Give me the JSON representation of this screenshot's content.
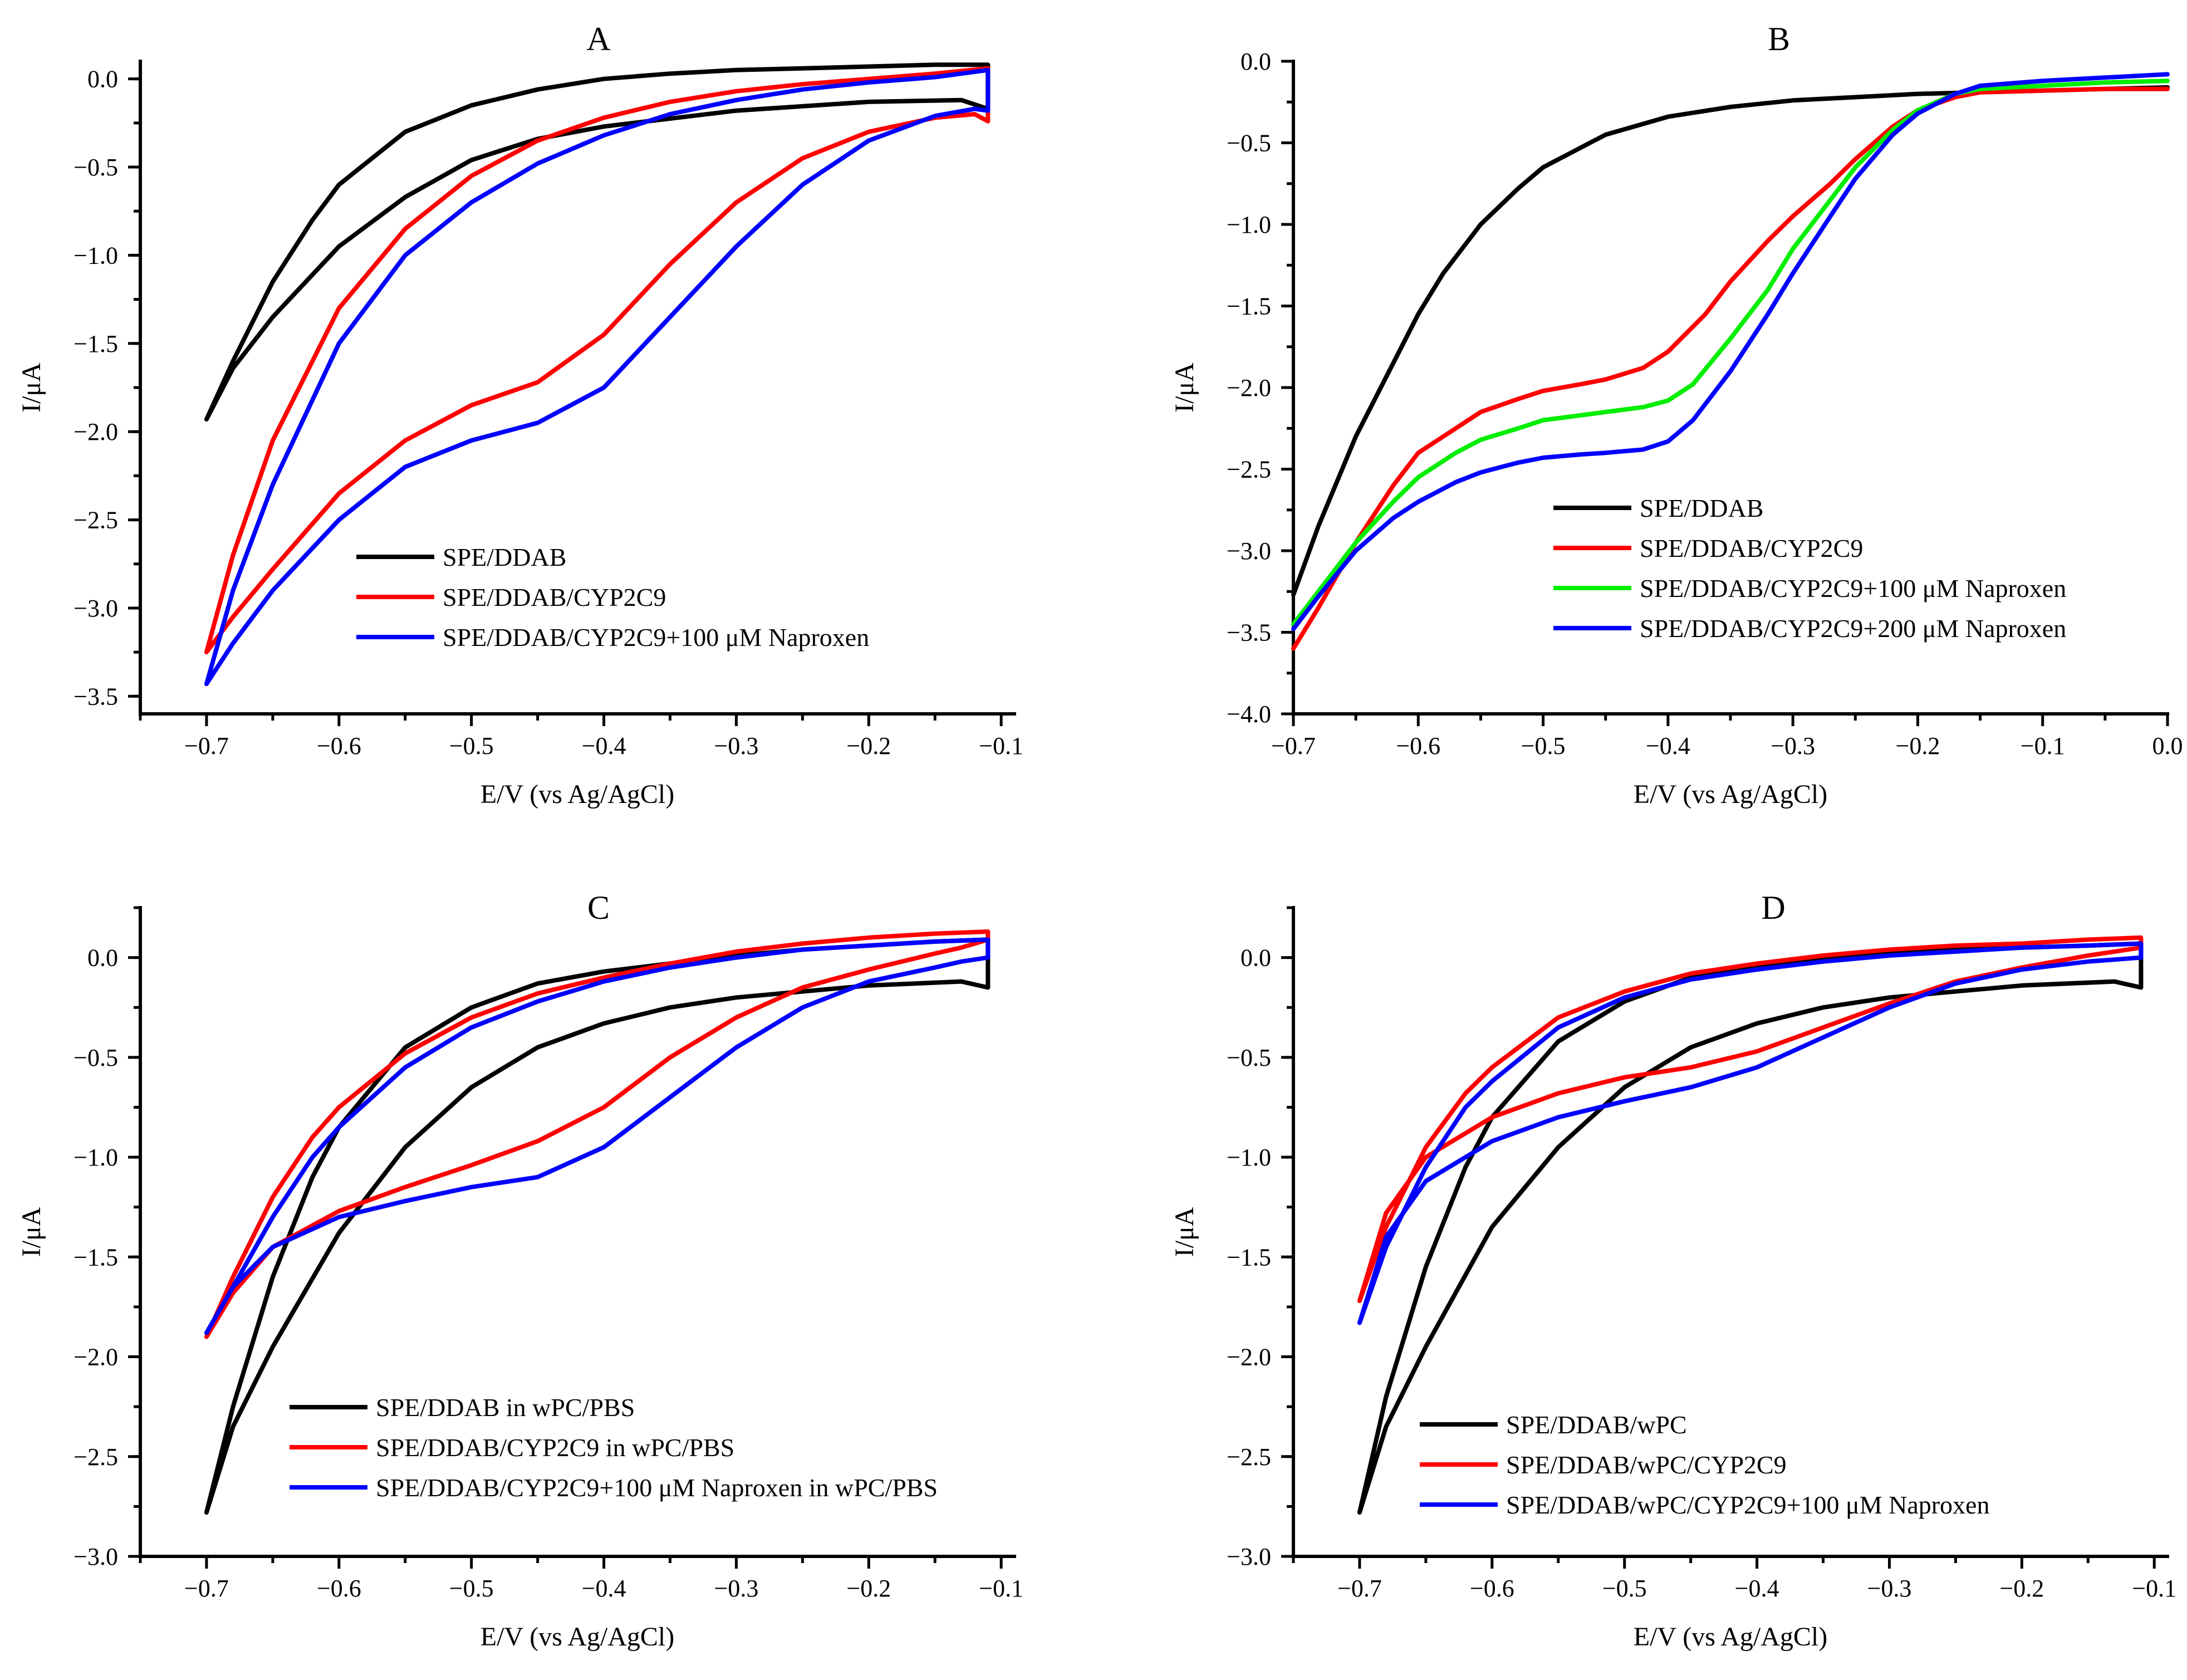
{
  "chart_data": [
    {
      "type": "line",
      "title": "A",
      "xlabel": "E/V (vs Ag/AgCl)",
      "ylabel": "I/μA",
      "xlim": [
        -0.75,
        -0.09
      ],
      "ylim": [
        -3.6,
        0.1
      ],
      "xticks": [
        -0.7,
        -0.6,
        -0.5,
        -0.4,
        -0.3,
        -0.2,
        -0.1
      ],
      "xtick_labels": [
        "−0.7",
        "−0.6",
        "−0.5",
        "−0.4",
        "−0.3",
        "−0.2",
        "−0.1"
      ],
      "yticks": [
        0.0,
        -0.5,
        -1.0,
        -1.5,
        -2.0,
        -2.5,
        -3.0,
        -3.5
      ],
      "ytick_labels": [
        "0.0",
        "−0.5",
        "−1.0",
        "−1.5",
        "−2.0",
        "−2.5",
        "−3.0",
        "−3.5"
      ],
      "legend_position": "bottom-center",
      "series": [
        {
          "name": "SPE/DDAB",
          "color": "#000000",
          "x": [
            -0.7,
            -0.68,
            -0.65,
            -0.62,
            -0.6,
            -0.55,
            -0.5,
            -0.45,
            -0.4,
            -0.35,
            -0.3,
            -0.25,
            -0.2,
            -0.15,
            -0.11,
            -0.11,
            -0.13,
            -0.2,
            -0.3,
            -0.4,
            -0.45,
            -0.5,
            -0.55,
            -0.6,
            -0.65,
            -0.68,
            -0.7
          ],
          "y": [
            -1.93,
            -1.6,
            -1.15,
            -0.8,
            -0.6,
            -0.3,
            -0.15,
            -0.06,
            0.0,
            0.03,
            0.05,
            0.06,
            0.07,
            0.08,
            0.08,
            -0.17,
            -0.12,
            -0.13,
            -0.18,
            -0.27,
            -0.34,
            -0.46,
            -0.67,
            -0.95,
            -1.35,
            -1.64,
            -1.93
          ]
        },
        {
          "name": "SPE/DDAB/CYP2C9",
          "color": "#ff0000",
          "x": [
            -0.7,
            -0.68,
            -0.65,
            -0.6,
            -0.55,
            -0.5,
            -0.45,
            -0.4,
            -0.35,
            -0.3,
            -0.25,
            -0.2,
            -0.15,
            -0.11,
            -0.11,
            -0.12,
            -0.15,
            -0.2,
            -0.25,
            -0.3,
            -0.35,
            -0.4,
            -0.45,
            -0.5,
            -0.55,
            -0.6,
            -0.65,
            -0.68,
            -0.7
          ],
          "y": [
            -3.25,
            -2.7,
            -2.05,
            -1.3,
            -0.85,
            -0.55,
            -0.35,
            -0.22,
            -0.13,
            -0.07,
            -0.03,
            0.0,
            0.03,
            0.06,
            -0.24,
            -0.2,
            -0.22,
            -0.3,
            -0.45,
            -0.7,
            -1.05,
            -1.45,
            -1.72,
            -1.85,
            -2.05,
            -2.35,
            -2.78,
            -3.05,
            -3.25
          ]
        },
        {
          "name": "SPE/DDAB/CYP2C9+100 μM Naproxen",
          "color": "#0000ff",
          "x": [
            -0.7,
            -0.68,
            -0.65,
            -0.6,
            -0.55,
            -0.5,
            -0.45,
            -0.4,
            -0.35,
            -0.3,
            -0.25,
            -0.2,
            -0.15,
            -0.11,
            -0.11,
            -0.12,
            -0.15,
            -0.2,
            -0.25,
            -0.3,
            -0.35,
            -0.4,
            -0.45,
            -0.5,
            -0.55,
            -0.6,
            -0.65,
            -0.68,
            -0.7
          ],
          "y": [
            -3.43,
            -2.9,
            -2.3,
            -1.5,
            -1.0,
            -0.7,
            -0.48,
            -0.32,
            -0.2,
            -0.12,
            -0.06,
            -0.02,
            0.01,
            0.05,
            -0.18,
            -0.17,
            -0.21,
            -0.35,
            -0.6,
            -0.95,
            -1.35,
            -1.75,
            -1.95,
            -2.05,
            -2.2,
            -2.5,
            -2.9,
            -3.2,
            -3.43
          ]
        }
      ]
    },
    {
      "type": "line",
      "title": "B",
      "xlabel": "E/V (vs Ag/AgCl)",
      "ylabel": "I/μA",
      "xlim": [
        -0.7,
        0.0
      ],
      "ylim": [
        -4.0,
        0.0
      ],
      "xticks": [
        -0.7,
        -0.6,
        -0.5,
        -0.4,
        -0.3,
        -0.2,
        -0.1,
        0.0
      ],
      "xtick_labels": [
        "−0.7",
        "−0.6",
        "−0.5",
        "−0.4",
        "−0.3",
        "−0.2",
        "−0.1",
        "0.0"
      ],
      "yticks": [
        0.0,
        -0.5,
        -1.0,
        -1.5,
        -2.0,
        -2.5,
        -3.0,
        -3.5,
        -4.0
      ],
      "ytick_labels": [
        "0.0",
        "−0.5",
        "−1.0",
        "−1.5",
        "−2.0",
        "−2.5",
        "−3.0",
        "−3.5",
        "−4.0"
      ],
      "legend_position": "bottom-right",
      "series": [
        {
          "name": "SPE/DDAB",
          "color": "#000000",
          "x": [
            -0.7,
            -0.68,
            -0.65,
            -0.62,
            -0.6,
            -0.58,
            -0.55,
            -0.52,
            -0.5,
            -0.45,
            -0.4,
            -0.35,
            -0.3,
            -0.25,
            -0.2,
            -0.15,
            -0.1,
            -0.05,
            0.0
          ],
          "y": [
            -3.27,
            -2.85,
            -2.3,
            -1.85,
            -1.55,
            -1.3,
            -1.0,
            -0.78,
            -0.65,
            -0.45,
            -0.34,
            -0.28,
            -0.24,
            -0.22,
            -0.2,
            -0.19,
            -0.18,
            -0.17,
            -0.16
          ]
        },
        {
          "name": "SPE/DDAB/CYP2C9",
          "color": "#ff0000",
          "x": [
            -0.7,
            -0.68,
            -0.65,
            -0.62,
            -0.6,
            -0.57,
            -0.55,
            -0.52,
            -0.5,
            -0.47,
            -0.45,
            -0.42,
            -0.4,
            -0.37,
            -0.35,
            -0.32,
            -0.3,
            -0.27,
            -0.25,
            -0.22,
            -0.2,
            -0.17,
            -0.15,
            -0.1,
            -0.05,
            0.0
          ],
          "y": [
            -3.6,
            -3.35,
            -2.95,
            -2.6,
            -2.4,
            -2.25,
            -2.15,
            -2.07,
            -2.02,
            -1.98,
            -1.95,
            -1.88,
            -1.78,
            -1.55,
            -1.35,
            -1.1,
            -0.95,
            -0.75,
            -0.6,
            -0.4,
            -0.3,
            -0.22,
            -0.19,
            -0.18,
            -0.17,
            -0.17
          ]
        },
        {
          "name": "SPE/DDAB/CYP2C9+100 μM Naproxen",
          "color": "#00ee00",
          "x": [
            -0.7,
            -0.68,
            -0.65,
            -0.62,
            -0.6,
            -0.57,
            -0.55,
            -0.52,
            -0.5,
            -0.47,
            -0.45,
            -0.42,
            -0.4,
            -0.38,
            -0.35,
            -0.32,
            -0.3,
            -0.27,
            -0.25,
            -0.22,
            -0.2,
            -0.17,
            -0.15,
            -0.1,
            -0.05,
            0.0
          ],
          "y": [
            -3.45,
            -3.25,
            -2.95,
            -2.7,
            -2.55,
            -2.4,
            -2.32,
            -2.25,
            -2.2,
            -2.17,
            -2.15,
            -2.12,
            -2.08,
            -1.98,
            -1.7,
            -1.4,
            -1.15,
            -0.85,
            -0.65,
            -0.42,
            -0.3,
            -0.2,
            -0.17,
            -0.15,
            -0.13,
            -0.12
          ]
        },
        {
          "name": "SPE/DDAB/CYP2C9+200 μM Naproxen",
          "color": "#0000ff",
          "x": [
            -0.7,
            -0.68,
            -0.65,
            -0.62,
            -0.6,
            -0.57,
            -0.55,
            -0.52,
            -0.5,
            -0.47,
            -0.45,
            -0.42,
            -0.4,
            -0.38,
            -0.35,
            -0.32,
            -0.3,
            -0.27,
            -0.25,
            -0.22,
            -0.2,
            -0.17,
            -0.15,
            -0.1,
            -0.05,
            0.0
          ],
          "y": [
            -3.48,
            -3.28,
            -3.0,
            -2.8,
            -2.7,
            -2.58,
            -2.52,
            -2.46,
            -2.43,
            -2.41,
            -2.4,
            -2.38,
            -2.33,
            -2.2,
            -1.9,
            -1.55,
            -1.3,
            -0.95,
            -0.72,
            -0.45,
            -0.32,
            -0.2,
            -0.15,
            -0.12,
            -0.1,
            -0.08
          ]
        }
      ]
    },
    {
      "type": "line",
      "title": "C",
      "xlabel": "E/V (vs Ag/AgCl)",
      "ylabel": "I/μA",
      "xlim": [
        -0.75,
        -0.09
      ],
      "ylim": [
        -3.0,
        0.25
      ],
      "xticks": [
        -0.7,
        -0.6,
        -0.5,
        -0.4,
        -0.3,
        -0.2,
        -0.1
      ],
      "xtick_labels": [
        "−0.7",
        "−0.6",
        "−0.5",
        "−0.4",
        "−0.3",
        "−0.2",
        "−0.1"
      ],
      "yticks": [
        0.0,
        -0.5,
        -1.0,
        -1.5,
        -2.0,
        -2.5,
        -3.0
      ],
      "ytick_labels": [
        "0.0",
        "−0.5",
        "−1.0",
        "−1.5",
        "−2.0",
        "−2.5",
        "−3.0"
      ],
      "legend_position": "bottom-center",
      "series": [
        {
          "name": "SPE/DDAB in wPC/PBS",
          "color": "#000000",
          "x": [
            -0.7,
            -0.68,
            -0.65,
            -0.62,
            -0.6,
            -0.55,
            -0.5,
            -0.45,
            -0.4,
            -0.35,
            -0.3,
            -0.25,
            -0.2,
            -0.15,
            -0.11,
            -0.11,
            -0.13,
            -0.2,
            -0.3,
            -0.35,
            -0.4,
            -0.45,
            -0.5,
            -0.55,
            -0.6,
            -0.65,
            -0.68,
            -0.7
          ],
          "y": [
            -2.78,
            -2.25,
            -1.6,
            -1.1,
            -0.85,
            -0.45,
            -0.25,
            -0.13,
            -0.07,
            -0.03,
            0.01,
            0.04,
            0.06,
            0.08,
            0.09,
            -0.15,
            -0.12,
            -0.14,
            -0.2,
            -0.25,
            -0.33,
            -0.45,
            -0.65,
            -0.95,
            -1.38,
            -1.95,
            -2.35,
            -2.78
          ]
        },
        {
          "name": "SPE/DDAB/CYP2C9 in wPC/PBS",
          "color": "#ff0000",
          "x": [
            -0.7,
            -0.68,
            -0.65,
            -0.62,
            -0.6,
            -0.55,
            -0.5,
            -0.45,
            -0.4,
            -0.35,
            -0.3,
            -0.25,
            -0.2,
            -0.15,
            -0.11,
            -0.11,
            -0.13,
            -0.15,
            -0.2,
            -0.25,
            -0.3,
            -0.35,
            -0.4,
            -0.45,
            -0.5,
            -0.55,
            -0.6,
            -0.65,
            -0.68,
            -0.7
          ],
          "y": [
            -1.9,
            -1.6,
            -1.2,
            -0.9,
            -0.75,
            -0.48,
            -0.3,
            -0.18,
            -0.1,
            -0.03,
            0.03,
            0.07,
            0.1,
            0.12,
            0.13,
            0.09,
            0.05,
            0.02,
            -0.06,
            -0.15,
            -0.3,
            -0.5,
            -0.75,
            -0.92,
            -1.04,
            -1.15,
            -1.27,
            -1.45,
            -1.68,
            -1.9
          ]
        },
        {
          "name": "SPE/DDAB/CYP2C9+100 μM Naproxen in wPC/PBS",
          "color": "#0000ff",
          "x": [
            -0.7,
            -0.68,
            -0.65,
            -0.62,
            -0.6,
            -0.55,
            -0.5,
            -0.45,
            -0.4,
            -0.35,
            -0.3,
            -0.25,
            -0.2,
            -0.15,
            -0.11,
            -0.11,
            -0.13,
            -0.15,
            -0.2,
            -0.25,
            -0.3,
            -0.35,
            -0.4,
            -0.45,
            -0.5,
            -0.55,
            -0.6,
            -0.65,
            -0.68,
            -0.7
          ],
          "y": [
            -1.88,
            -1.65,
            -1.3,
            -1.0,
            -0.85,
            -0.55,
            -0.35,
            -0.22,
            -0.12,
            -0.05,
            0.0,
            0.04,
            0.06,
            0.08,
            0.09,
            0.0,
            -0.02,
            -0.05,
            -0.12,
            -0.25,
            -0.45,
            -0.7,
            -0.95,
            -1.1,
            -1.15,
            -1.22,
            -1.3,
            -1.45,
            -1.65,
            -1.88
          ]
        }
      ]
    },
    {
      "type": "line",
      "title": "D",
      "xlabel": "E/V (vs Ag/AgCl)",
      "ylabel": "I/μA",
      "xlim": [
        -0.75,
        -0.09
      ],
      "ylim": [
        -3.0,
        0.25
      ],
      "xticks": [
        -0.7,
        -0.6,
        -0.5,
        -0.4,
        -0.3,
        -0.2,
        -0.1
      ],
      "xtick_labels": [
        "−0.7",
        "−0.6",
        "−0.5",
        "−0.4",
        "−0.3",
        "−0.2",
        "−0.1"
      ],
      "yticks": [
        0.0,
        -0.5,
        -1.0,
        -1.5,
        -2.0,
        -2.5,
        -3.0
      ],
      "ytick_labels": [
        "0.0",
        "−0.5",
        "−1.0",
        "−1.5",
        "−2.0",
        "−2.5",
        "−3.0"
      ],
      "legend_position": "bottom-center",
      "series": [
        {
          "name": "SPE/DDAB/wPC",
          "color": "#000000",
          "x": [
            -0.7,
            -0.68,
            -0.65,
            -0.62,
            -0.6,
            -0.55,
            -0.5,
            -0.45,
            -0.4,
            -0.35,
            -0.3,
            -0.25,
            -0.2,
            -0.15,
            -0.11,
            -0.11,
            -0.13,
            -0.2,
            -0.3,
            -0.35,
            -0.4,
            -0.45,
            -0.5,
            -0.55,
            -0.6,
            -0.65,
            -0.68,
            -0.7
          ],
          "y": [
            -2.78,
            -2.2,
            -1.55,
            -1.05,
            -0.8,
            -0.42,
            -0.22,
            -0.1,
            -0.05,
            -0.01,
            0.02,
            0.04,
            0.05,
            0.06,
            0.07,
            -0.15,
            -0.12,
            -0.14,
            -0.2,
            -0.25,
            -0.33,
            -0.45,
            -0.65,
            -0.95,
            -1.35,
            -1.95,
            -2.35,
            -2.78
          ]
        },
        {
          "name": "SPE/DDAB/wPC/CYP2C9",
          "color": "#ff0000",
          "x": [
            -0.7,
            -0.68,
            -0.65,
            -0.62,
            -0.6,
            -0.55,
            -0.5,
            -0.45,
            -0.4,
            -0.35,
            -0.3,
            -0.25,
            -0.2,
            -0.15,
            -0.11,
            -0.11,
            -0.13,
            -0.15,
            -0.2,
            -0.25,
            -0.3,
            -0.35,
            -0.4,
            -0.45,
            -0.5,
            -0.55,
            -0.6,
            -0.65,
            -0.68,
            -0.7
          ],
          "y": [
            -1.72,
            -1.35,
            -0.95,
            -0.68,
            -0.55,
            -0.3,
            -0.17,
            -0.08,
            -0.03,
            0.01,
            0.04,
            0.06,
            0.07,
            0.09,
            0.1,
            0.05,
            0.03,
            0.01,
            -0.05,
            -0.12,
            -0.23,
            -0.35,
            -0.47,
            -0.55,
            -0.6,
            -0.68,
            -0.8,
            -1.0,
            -1.28,
            -1.72
          ]
        },
        {
          "name": "SPE/DDAB/wPC/CYP2C9+100 μM Naproxen",
          "color": "#0000ff",
          "x": [
            -0.7,
            -0.68,
            -0.65,
            -0.62,
            -0.6,
            -0.55,
            -0.5,
            -0.45,
            -0.4,
            -0.35,
            -0.3,
            -0.25,
            -0.2,
            -0.15,
            -0.11,
            -0.11,
            -0.13,
            -0.15,
            -0.2,
            -0.25,
            -0.3,
            -0.35,
            -0.4,
            -0.45,
            -0.5,
            -0.55,
            -0.6,
            -0.65,
            -0.68,
            -0.7
          ],
          "y": [
            -1.83,
            -1.45,
            -1.05,
            -0.75,
            -0.62,
            -0.35,
            -0.2,
            -0.11,
            -0.06,
            -0.02,
            0.01,
            0.03,
            0.05,
            0.06,
            0.07,
            0.0,
            -0.01,
            -0.02,
            -0.06,
            -0.13,
            -0.25,
            -0.4,
            -0.55,
            -0.65,
            -0.72,
            -0.8,
            -0.92,
            -1.12,
            -1.4,
            -1.83
          ]
        }
      ]
    }
  ]
}
